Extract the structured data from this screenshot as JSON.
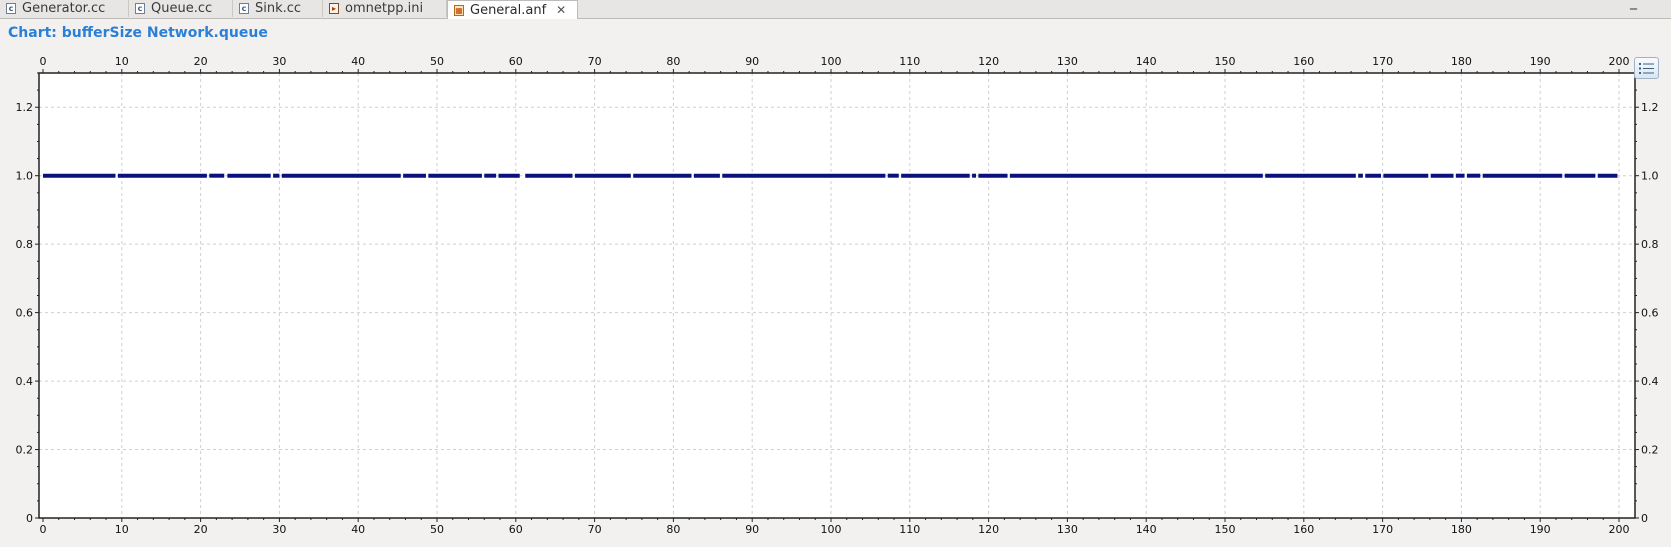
{
  "tabs": [
    {
      "label": "Generator.cc",
      "type": "cc"
    },
    {
      "label": "Queue.cc",
      "type": "cc"
    },
    {
      "label": "Sink.cc",
      "type": "cc"
    },
    {
      "label": "omnetpp.ini",
      "type": "ini"
    },
    {
      "label": "General.anf",
      "type": "anf",
      "active": true
    }
  ],
  "tab_close_icon": "close-icon",
  "title": "Chart: bufferSize Network.queue",
  "legend_button_icon": "list-icon",
  "colors": {
    "title": "#2b7fd6",
    "series": "#0a107e",
    "grid": "#cfcfcf",
    "plot_bg": "#ffffff"
  },
  "chart_data": {
    "type": "line",
    "title": "Chart: bufferSize Network.queue",
    "xlabel": "",
    "ylabel": "",
    "xlim": [
      0,
      200
    ],
    "ylim": [
      0,
      1.3
    ],
    "x_ticks": [
      0,
      10,
      20,
      30,
      40,
      50,
      60,
      70,
      80,
      90,
      100,
      110,
      120,
      130,
      140,
      150,
      160,
      170,
      180,
      190,
      200
    ],
    "y_ticks": [
      "0",
      "0.2",
      "0.4",
      "0.6",
      "0.8",
      "1.0",
      "1.2"
    ],
    "x_axis_top": true,
    "y_axis_right": true,
    "grid": true,
    "series": [
      {
        "value": 1.0,
        "segments": [
          [
            0,
            9.2
          ],
          [
            9.5,
            20.8
          ],
          [
            21.1,
            23.0
          ],
          [
            23.4,
            28.9
          ],
          [
            29.2,
            30.0
          ],
          [
            30.3,
            45.4
          ],
          [
            45.7,
            48.6
          ],
          [
            48.9,
            55.7
          ],
          [
            56.0,
            57.5
          ],
          [
            57.8,
            60.5
          ],
          [
            61.2,
            67.2
          ],
          [
            67.5,
            74.6
          ],
          [
            74.9,
            82.3
          ],
          [
            82.6,
            85.9
          ],
          [
            86.2,
            106.9
          ],
          [
            107.2,
            108.6
          ],
          [
            108.9,
            117.6
          ],
          [
            117.9,
            118.4
          ],
          [
            118.7,
            122.4
          ],
          [
            122.7,
            154.8
          ],
          [
            155.1,
            166.6
          ],
          [
            166.9,
            167.5
          ],
          [
            167.8,
            169.8
          ],
          [
            170.1,
            175.8
          ],
          [
            176.1,
            179.0
          ],
          [
            179.3,
            180.4
          ],
          [
            180.7,
            182.4
          ],
          [
            182.7,
            192.8
          ],
          [
            193.1,
            197.0
          ],
          [
            197.3,
            199.8
          ]
        ]
      }
    ]
  }
}
